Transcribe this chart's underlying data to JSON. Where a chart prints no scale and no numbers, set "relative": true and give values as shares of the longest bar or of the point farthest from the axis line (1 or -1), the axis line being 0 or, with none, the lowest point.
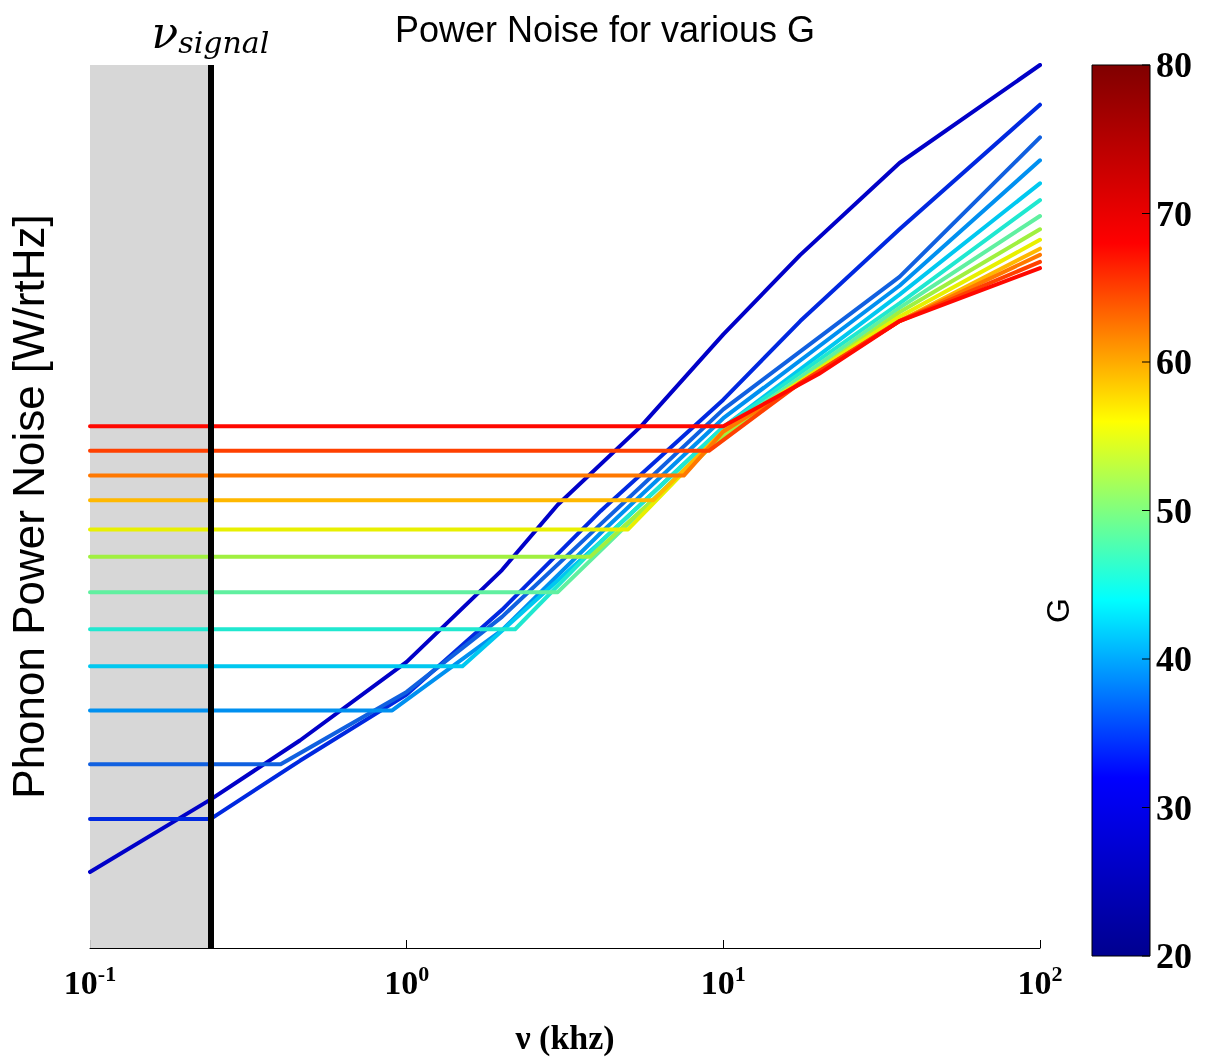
{
  "chart_data": {
    "type": "line",
    "title": "Power Noise for various G",
    "xlabel": "ν (khz)",
    "ylabel": "Phonon Power Noise [W/rtHz]",
    "clabel": "G",
    "clim": [
      20,
      80
    ],
    "cticks": [
      20,
      30,
      40,
      50,
      60,
      70,
      80
    ],
    "relative": true,
    "log": "x",
    "xlim": [
      0.1,
      100
    ],
    "xticks": [
      {
        "value": 0.1,
        "label": "10$^{-1}$"
      },
      {
        "value": 1,
        "label": "10$^{0}$"
      },
      {
        "value": 10,
        "label": "10$^{1}$"
      },
      {
        "value": 100,
        "label": "10$^{2}$"
      }
    ],
    "bands": [
      {
        "axis": "x",
        "from": 0.1,
        "to": 0.24,
        "color": "#d3d3d3"
      }
    ],
    "ref_lines": [
      {
        "axis": "x",
        "value": 0.24,
        "label": "ν$_{signal}$",
        "color": "#000000"
      }
    ],
    "series": [
      {
        "color": "#0000c8",
        "x": [
          0.1,
          0.24,
          0.46,
          1,
          2,
          3,
          5.5,
          10,
          17.5,
          36,
          100
        ],
        "values": [
          0.086,
          0.168,
          0.235,
          0.324,
          0.428,
          0.502,
          0.591,
          0.695,
          0.785,
          0.889,
          1.0
        ]
      },
      {
        "color": "#0028e0",
        "x": [
          0.1,
          0.24,
          0.46,
          1,
          2,
          4.1,
          10,
          17.5,
          36,
          100
        ],
        "values": [
          0.146,
          0.146,
          0.212,
          0.287,
          0.383,
          0.495,
          0.621,
          0.71,
          0.814,
          0.955
        ]
      },
      {
        "color": "#1060e0",
        "x": [
          0.1,
          0.4,
          1,
          2,
          4.1,
          10,
          36,
          100
        ],
        "values": [
          0.208,
          0.208,
          0.29,
          0.375,
          0.48,
          0.61,
          0.76,
          0.918
        ]
      },
      {
        "color": "#0090f0",
        "x": [
          0.1,
          0.9,
          2,
          4.1,
          10,
          36,
          100
        ],
        "values": [
          0.269,
          0.269,
          0.36,
          0.47,
          0.6,
          0.75,
          0.892
        ]
      },
      {
        "color": "#00c8f0",
        "x": [
          0.1,
          1.5,
          4.1,
          10,
          36,
          100
        ],
        "values": [
          0.319,
          0.319,
          0.46,
          0.59,
          0.74,
          0.866
        ]
      },
      {
        "color": "#20e8d0",
        "x": [
          0.1,
          2.2,
          4.1,
          10,
          36,
          100
        ],
        "values": [
          0.361,
          0.361,
          0.46,
          0.59,
          0.73,
          0.847
        ]
      },
      {
        "color": "#60f0a0",
        "x": [
          0.1,
          3,
          10,
          36,
          100
        ],
        "values": [
          0.403,
          0.403,
          0.585,
          0.725,
          0.829
        ]
      },
      {
        "color": "#a0f040",
        "x": [
          0.1,
          3.8,
          10,
          36,
          100
        ],
        "values": [
          0.443,
          0.443,
          0.58,
          0.72,
          0.814
        ]
      },
      {
        "color": "#e8f000",
        "x": [
          0.1,
          5,
          10,
          36,
          100
        ],
        "values": [
          0.474,
          0.474,
          0.585,
          0.715,
          0.802
        ]
      },
      {
        "color": "#ffb800",
        "x": [
          0.1,
          6,
          10,
          36,
          100
        ],
        "values": [
          0.507,
          0.507,
          0.585,
          0.71,
          0.792
        ]
      },
      {
        "color": "#ff7800",
        "x": [
          0.1,
          7.5,
          10,
          36,
          100
        ],
        "values": [
          0.535,
          0.535,
          0.585,
          0.71,
          0.785
        ]
      },
      {
        "color": "#ff4000",
        "x": [
          0.1,
          9,
          17.5,
          36,
          100
        ],
        "values": [
          0.563,
          0.563,
          0.64,
          0.71,
          0.777
        ]
      },
      {
        "color": "#ff0800",
        "x": [
          0.1,
          10,
          20,
          36,
          100
        ],
        "values": [
          0.591,
          0.591,
          0.65,
          0.71,
          0.77
        ]
      }
    ]
  }
}
